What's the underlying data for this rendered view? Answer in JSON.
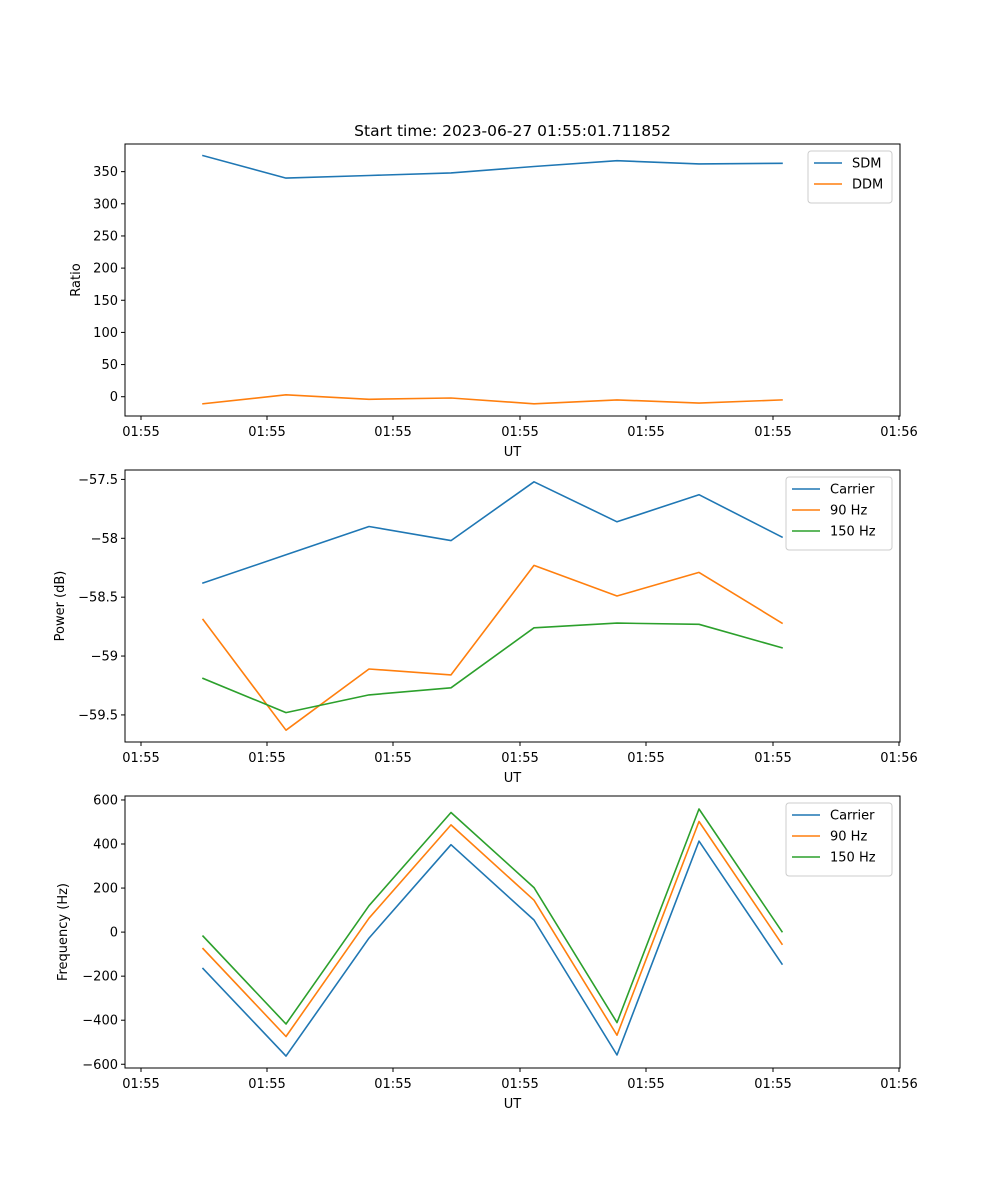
{
  "chart_data": [
    {
      "type": "line",
      "title": "Start time: 2023-06-27 01:55:01.711852",
      "xlabel": "UT",
      "ylabel": "Ratio",
      "x": [
        "01:55:01.711852",
        "01:55:01.906",
        "01:55:02.10",
        "01:55:02.30",
        "01:55:02.50",
        "01:55:02.70",
        "01:55:02.90",
        "01:55:03.10"
      ],
      "xtick_labels": [
        "01:55",
        "01:55",
        "01:55",
        "01:55",
        "01:55",
        "01:55",
        "01:56"
      ],
      "ylim": [
        -30,
        393
      ],
      "yticks": [
        0,
        50,
        100,
        150,
        200,
        250,
        300,
        350
      ],
      "series": [
        {
          "name": "SDM",
          "color": "#1f77b4",
          "values": [
            375,
            340,
            344,
            348,
            358,
            367,
            362,
            363
          ]
        },
        {
          "name": "DDM",
          "color": "#ff7f0e",
          "values": [
            -11,
            3,
            -4,
            -2,
            -11,
            -5,
            -10,
            -5
          ]
        }
      ],
      "legend": "top-right",
      "grid": false
    },
    {
      "type": "line",
      "title": "",
      "xlabel": "UT",
      "ylabel": "Power (dB)",
      "x": [
        "01:55:01.711852",
        "01:55:01.906",
        "01:55:02.10",
        "01:55:02.30",
        "01:55:02.50",
        "01:55:02.70",
        "01:55:02.90",
        "01:55:03.10"
      ],
      "xtick_labels": [
        "01:55",
        "01:55",
        "01:55",
        "01:55",
        "01:55",
        "01:55",
        "01:56"
      ],
      "ylim": [
        -59.73,
        -57.42
      ],
      "yticks": [
        -59.5,
        -59.0,
        -58.5,
        -58.0,
        -57.5
      ],
      "series": [
        {
          "name": "Carrier",
          "color": "#1f77b4",
          "values": [
            -58.38,
            -58.14,
            -57.9,
            -58.02,
            -57.52,
            -57.86,
            -57.63,
            -57.99
          ]
        },
        {
          "name": "90 Hz",
          "color": "#ff7f0e",
          "values": [
            -58.69,
            -59.63,
            -59.11,
            -59.16,
            -58.23,
            -58.49,
            -58.29,
            -58.72
          ]
        },
        {
          "name": "150 Hz",
          "color": "#2ca02c",
          "values": [
            -59.19,
            -59.48,
            -59.33,
            -59.27,
            -58.76,
            -58.72,
            -58.73,
            -58.93
          ]
        }
      ],
      "legend": "top-right",
      "grid": false
    },
    {
      "type": "line",
      "title": "",
      "xlabel": "UT",
      "ylabel": "Frequency (Hz)",
      "x": [
        "01:55:01.711852",
        "01:55:01.906",
        "01:55:02.10",
        "01:55:02.30",
        "01:55:02.50",
        "01:55:02.70",
        "01:55:02.90",
        "01:55:03.10"
      ],
      "xtick_labels": [
        "01:55",
        "01:55",
        "01:55",
        "01:55",
        "01:55",
        "01:55",
        "01:56"
      ],
      "ylim": [
        -617,
        618
      ],
      "yticks": [
        -600,
        -400,
        -200,
        0,
        200,
        400,
        600
      ],
      "series": [
        {
          "name": "Carrier",
          "color": "#1f77b4",
          "values": [
            -165,
            -563,
            -27,
            397,
            55,
            -558,
            413,
            -145
          ]
        },
        {
          "name": "90 Hz",
          "color": "#ff7f0e",
          "values": [
            -75,
            -474,
            63,
            487,
            145,
            -468,
            502,
            -55
          ]
        },
        {
          "name": "150 Hz",
          "color": "#2ca02c",
          "values": [
            -18,
            -417,
            120,
            543,
            202,
            -411,
            559,
            2
          ]
        }
      ],
      "legend": "top-right",
      "grid": false
    }
  ]
}
